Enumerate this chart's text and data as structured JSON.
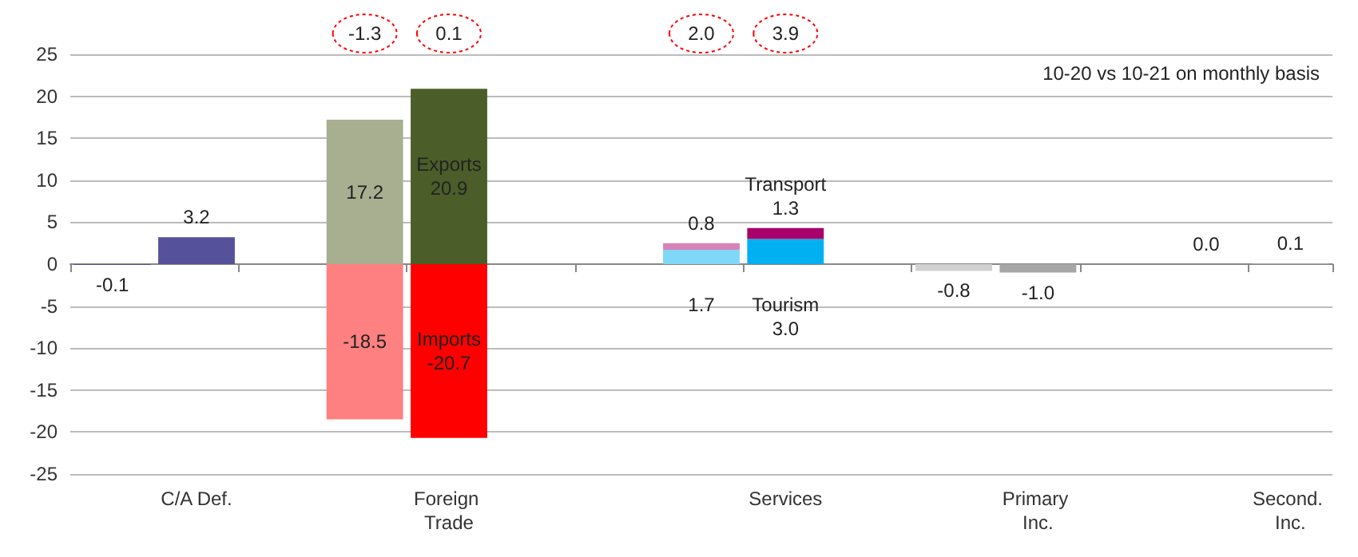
{
  "chart_data": {
    "type": "bar",
    "stacked": true,
    "categories": [
      null,
      "C/A Def.",
      null,
      null,
      "Foreign Trade",
      null,
      null,
      null,
      "Services",
      null,
      null,
      "Primary Inc.",
      null,
      null,
      "Second. Inc."
    ],
    "series": [
      {
        "colors": [
          "#55519a",
          "#55519a",
          null,
          "#a8ae90",
          "#4b5e29",
          null,
          null,
          "#80d8f8",
          "#00b0f0",
          null,
          "#d0d0d0",
          "#a6a6a6",
          null,
          "#a6a6a6",
          "#a6a6a6"
        ],
        "values": [
          -0.1,
          3.2,
          null,
          17.2,
          20.9,
          null,
          null,
          1.7,
          3.0,
          null,
          -0.8,
          -1.0,
          null,
          0.0,
          0.1
        ],
        "value_labels": [
          "-0.1",
          "3.2",
          null,
          "17.2",
          "Exports\n20.9",
          null,
          null,
          "1.7",
          "Tourism\n3.0",
          null,
          "-0.8",
          "-1.0",
          null,
          "0.0",
          "0.1"
        ]
      },
      {
        "colors": [
          null,
          null,
          null,
          "#ff8080",
          "#ff0000",
          null,
          null,
          "#d883b8",
          "#a8006a",
          null,
          null,
          null,
          null,
          null,
          null
        ],
        "values": [
          null,
          null,
          null,
          -18.5,
          -20.7,
          null,
          null,
          0.8,
          1.3,
          null,
          null,
          null,
          null,
          null,
          null
        ],
        "value_labels": [
          null,
          null,
          null,
          "-18.5",
          "Imports\n-20.7",
          null,
          null,
          "0.8",
          "Transport\n1.3",
          null,
          null,
          null,
          null,
          null,
          null
        ]
      }
    ],
    "ylim": [
      -25,
      25
    ],
    "yticks": [
      -25,
      -20,
      -15,
      -10,
      -5,
      0,
      5,
      10,
      15,
      20,
      25
    ],
    "grid": "y",
    "annotations": [
      "-1.3",
      "0.1",
      "2.0",
      "3.9",
      "10-20 vs 10-21 on monthly basis"
    ]
  }
}
